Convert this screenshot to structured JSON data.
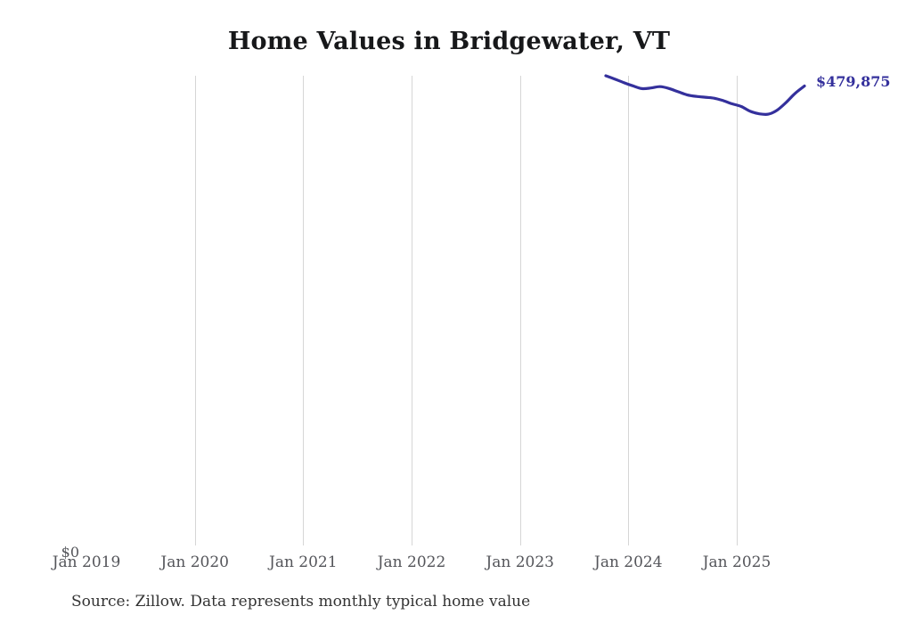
{
  "title": "Home Values in Bridgewater, VT",
  "source_note": "Source: Zillow. Data represents monthly typical home value",
  "latest_value_label": "$479,875",
  "y_zero_label": "$0",
  "colors": {
    "line": "#34309c",
    "latest_label_text": "#34309c",
    "gridline": "#d6d6d6",
    "axis_text": "#54555a",
    "title_text": "#17181a",
    "source_text": "#333333",
    "background": "#ffffff"
  },
  "chart_data": {
    "type": "line",
    "title": "Home Values in Bridgewater, VT",
    "xlabel": "",
    "ylabel": "",
    "x_tick_labels": [
      "Jan 2019",
      "Jan 2020",
      "Jan 2021",
      "Jan 2022",
      "Jan 2023",
      "Jan 2024",
      "Jan 2025"
    ],
    "gridlines_at": [
      "Jan 2020",
      "Jan 2021",
      "Jan 2022",
      "Jan 2023",
      "Jan 2024",
      "Jan 2025"
    ],
    "y_tick_labels": [
      "$0"
    ],
    "ylim": [
      0,
      490400
    ],
    "grid": "vertical-only",
    "legend": "none",
    "end_value_label": "$479,875",
    "series": [
      {
        "name": "Monthly typical home value",
        "points": [
          [
            "2023-10",
            490400
          ],
          [
            "2023-11",
            487000
          ],
          [
            "2023-12",
            483300
          ],
          [
            "2024-01",
            480000
          ],
          [
            "2024-02",
            477200
          ],
          [
            "2024-03",
            477800
          ],
          [
            "2024-04",
            479200
          ],
          [
            "2024-05",
            477300
          ],
          [
            "2024-06",
            474000
          ],
          [
            "2024-07",
            470800
          ],
          [
            "2024-08",
            469200
          ],
          [
            "2024-09",
            468300
          ],
          [
            "2024-10",
            467300
          ],
          [
            "2024-11",
            464800
          ],
          [
            "2024-12",
            461500
          ],
          [
            "2025-01",
            458800
          ],
          [
            "2025-02",
            453800
          ],
          [
            "2025-03",
            451300
          ],
          [
            "2025-04",
            450900
          ],
          [
            "2025-05",
            455200
          ],
          [
            "2025-06",
            463300
          ],
          [
            "2025-07",
            472600
          ],
          [
            "2025-08",
            479875
          ]
        ]
      }
    ]
  }
}
